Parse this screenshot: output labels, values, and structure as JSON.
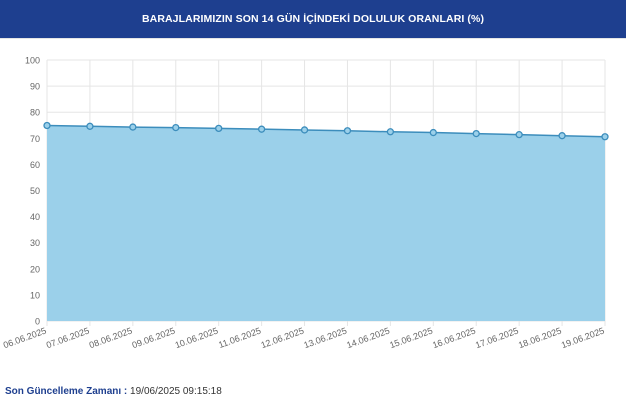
{
  "header": {
    "title": "BARAJLARIMIZIN SON 14 GÜN İÇİNDEKİ DOLULUK ORANLARI (%)"
  },
  "footer": {
    "label": "Son Güncelleme Zamanı",
    "separator": " :",
    "value": " 19/06/2025 09:15:18"
  },
  "colors": {
    "header_bg": "#1e3f8f",
    "area_fill": "#9bd0ea",
    "line": "#3c8dbc",
    "grid": "#e5e5e5"
  },
  "chart_data": {
    "type": "area",
    "title": "BARAJLARIMIZIN SON 14 GÜN İÇİNDEKİ DOLULUK ORANLARI (%)",
    "xlabel": "",
    "ylabel": "",
    "ylim": [
      0,
      100
    ],
    "yticks": [
      0,
      10,
      20,
      30,
      40,
      50,
      60,
      70,
      80,
      90,
      100
    ],
    "grid": true,
    "legend": "none",
    "categories": [
      "06.06.2025",
      "07.06.2025",
      "08.06.2025",
      "09.06.2025",
      "10.06.2025",
      "11.06.2025",
      "12.06.2025",
      "13.06.2025",
      "14.06.2025",
      "15.06.2025",
      "16.06.2025",
      "17.06.2025",
      "18.06.2025",
      "19.06.2025"
    ],
    "values": [
      74.9,
      74.6,
      74.3,
      74.1,
      73.8,
      73.5,
      73.2,
      72.9,
      72.5,
      72.2,
      71.8,
      71.4,
      71.0,
      70.6
    ]
  }
}
